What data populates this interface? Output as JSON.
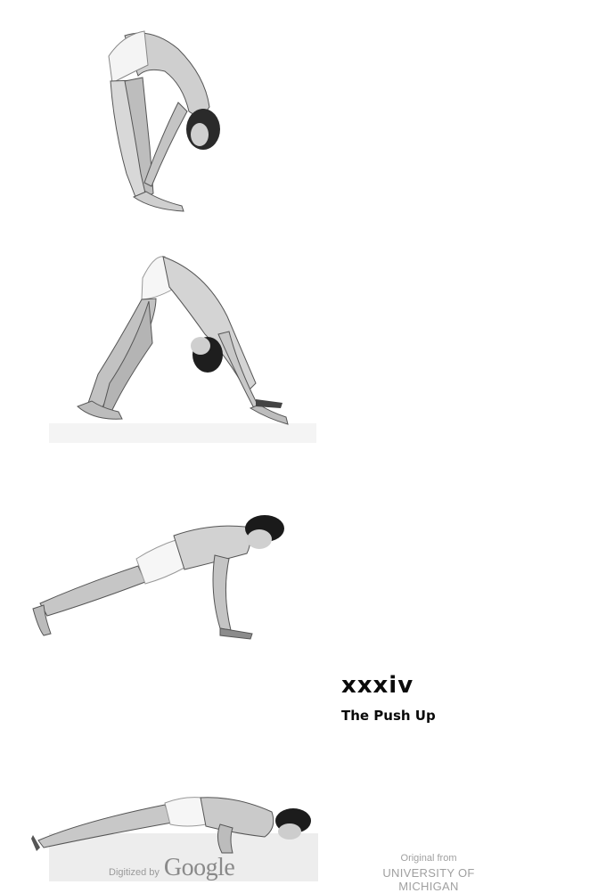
{
  "plate": {
    "number": "xxxiv",
    "caption": "The Push Up"
  },
  "photos": [
    {
      "name": "forward-bend-photo"
    },
    {
      "name": "pike-pose-photo"
    },
    {
      "name": "plank-pose-photo"
    },
    {
      "name": "push-up-low-photo"
    }
  ],
  "footer": {
    "digitized_by": "Digitized by",
    "google_logo": "Google",
    "original_from": "Original from",
    "university": "UNIVERSITY OF MICHIGAN"
  }
}
